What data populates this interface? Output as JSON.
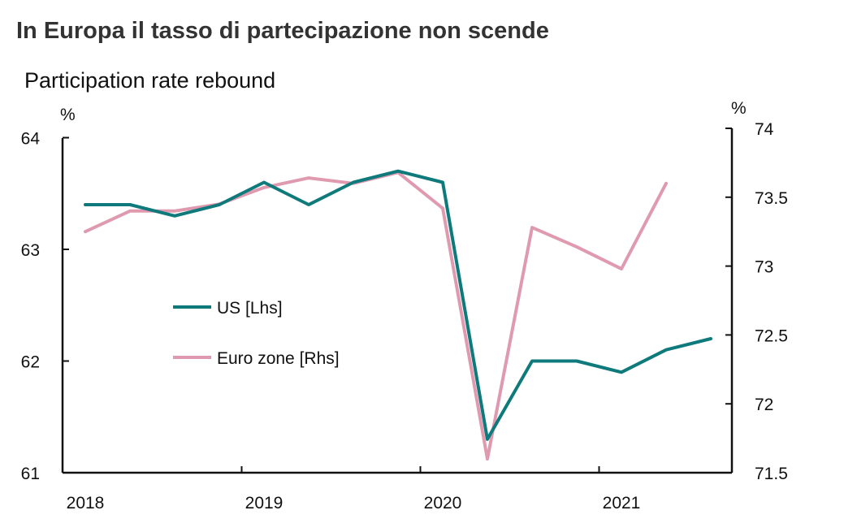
{
  "chart_data": {
    "type": "line",
    "title": "In Europa il tasso di partecipazione non scende",
    "subtitle": "Participation rate rebound",
    "left_axis": {
      "unit": "%",
      "ylim": [
        61,
        64
      ],
      "ticks": [
        "61",
        "62",
        "63",
        "64"
      ]
    },
    "right_axis": {
      "unit": "%",
      "ylim": [
        71.5,
        74
      ],
      "ticks": [
        "71.5",
        "72",
        "72.5",
        "73",
        "73.5",
        "74"
      ]
    },
    "x_axis": {
      "xlim": [
        2018,
        2021.75
      ],
      "ticks": [
        "2018",
        "2019",
        "2020",
        "2021"
      ]
    },
    "legend_placement": "middle-left",
    "series": [
      {
        "name": "US [Lhs]",
        "axis": "left",
        "color": "#0f7a7c",
        "x": [
          2018.0,
          2018.25,
          2018.5,
          2018.75,
          2019.0,
          2019.25,
          2019.5,
          2019.75,
          2020.0,
          2020.25,
          2020.5,
          2020.75,
          2021.0,
          2021.25,
          2021.5
        ],
        "values": [
          63.4,
          63.4,
          63.3,
          63.4,
          63.6,
          63.4,
          63.6,
          63.7,
          63.6,
          61.3,
          62.0,
          62.0,
          61.9,
          62.1,
          62.2
        ]
      },
      {
        "name": "Euro zone [Rhs]",
        "axis": "right",
        "color": "#e09aaf",
        "x": [
          2018.0,
          2018.25,
          2018.5,
          2018.75,
          2019.0,
          2019.25,
          2019.5,
          2019.75,
          2020.0,
          2020.25,
          2020.5,
          2020.75,
          2021.0,
          2021.25
        ],
        "values": [
          73.25,
          73.4,
          73.4,
          73.45,
          73.57,
          73.64,
          73.6,
          73.68,
          73.42,
          71.6,
          73.28,
          73.14,
          72.98,
          73.6
        ]
      }
    ]
  }
}
